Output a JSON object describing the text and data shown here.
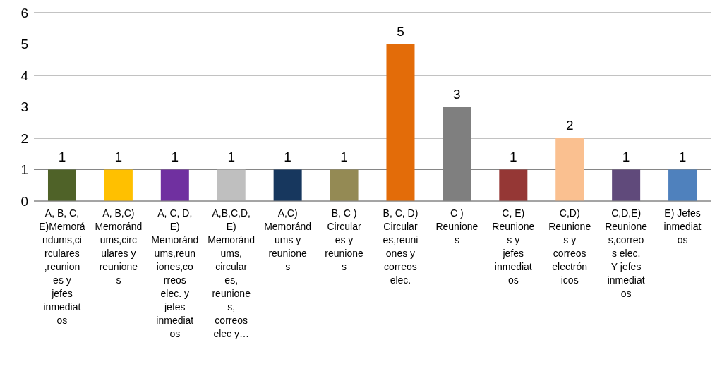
{
  "chart_data": {
    "type": "bar",
    "categories": [
      "A, B, C, E)Memorándums,circulares,reuniones y jefes inmediatos",
      "A, B,C) Memorándums,circulares y reuniones",
      "A, C, D, E) Memorándums,reuniones,correos elec. y jefes inmediatos",
      "A,B,C,D, E) Memorándums, circulares, reuniones, correos elec y…",
      "A,C) Memorándums y reuniones",
      "B, C ) Circulares y reuniones",
      "B, C, D) Circulares,reuniones y correos elec.",
      "C ) Reuniones",
      "C, E) Reuniones y jefes inmediatos",
      "C,D) Reuniones y correos electrónicos",
      "C,D,E) Reuniones,correos elec. Y jefes inmediatos",
      "E) Jefes inmediatos"
    ],
    "values": [
      1,
      1,
      1,
      1,
      1,
      1,
      5,
      3,
      1,
      2,
      1,
      1
    ],
    "colors": [
      "#4f6228",
      "#ffc000",
      "#7030a0",
      "#bfbfbf",
      "#17375e",
      "#948a54",
      "#e36c09",
      "#7f7f7f",
      "#953735",
      "#fac090",
      "#604a7b",
      "#4f81bd"
    ],
    "ylim": [
      0,
      6
    ],
    "yticks": [
      0,
      1,
      2,
      3,
      4,
      5,
      6
    ],
    "grid": "y",
    "data_labels": true
  }
}
